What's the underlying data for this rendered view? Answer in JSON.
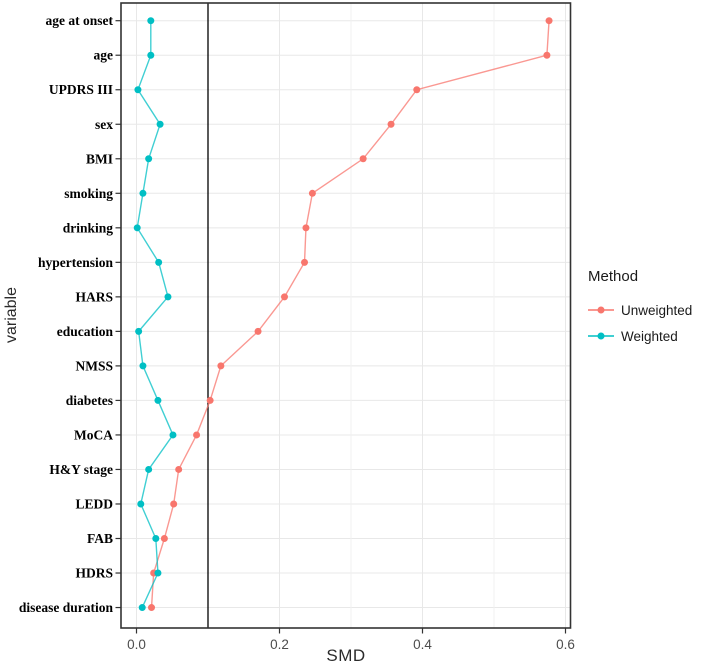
{
  "chart_data": {
    "type": "scatter",
    "title": "",
    "xlabel": "SMD",
    "ylabel": "variable",
    "xlim": [
      -0.022,
      0.61
    ],
    "x_ticks": [
      0.0,
      0.2,
      0.4,
      0.6
    ],
    "x_tick_labels": [
      "0.0",
      "0.2",
      "0.4",
      "0.6"
    ],
    "x_minor_gridlines": [
      0.1,
      0.3,
      0.5
    ],
    "reference_line_x": 0.1,
    "grid": "on",
    "categories": [
      "age at onset",
      "age",
      "UPDRS III",
      "sex",
      "BMI",
      "smoking",
      "drinking",
      "hypertension",
      "HARS",
      "education",
      "NMSS",
      "diabetes",
      "MoCA",
      "H&Y stage",
      "LEDD",
      "FAB",
      "HDRS",
      "disease duration"
    ],
    "series": [
      {
        "name": "Unweighted",
        "color": "#F8766D",
        "values": [
          0.577,
          0.574,
          0.392,
          0.356,
          0.317,
          0.246,
          0.237,
          0.235,
          0.207,
          0.17,
          0.118,
          0.103,
          0.084,
          0.059,
          0.052,
          0.039,
          0.024,
          0.021
        ]
      },
      {
        "name": "Weighted",
        "color": "#00BFC4",
        "values": [
          0.02,
          0.02,
          0.002,
          0.033,
          0.017,
          0.009,
          0.001,
          0.031,
          0.044,
          0.003,
          0.009,
          0.03,
          0.051,
          0.017,
          0.006,
          0.027,
          0.03,
          0.008
        ]
      }
    ],
    "legend": {
      "title": "Method",
      "position": "right"
    }
  },
  "style": {
    "panel_border_color": "#333333",
    "grid_major_color": "#e8e8e8",
    "grid_minor_color": "#f1f1f1",
    "tick_color": "#333333",
    "tick_label_color": "#4d4d4d",
    "reference_line_color": "#000000",
    "category_label_color": "#000000"
  }
}
